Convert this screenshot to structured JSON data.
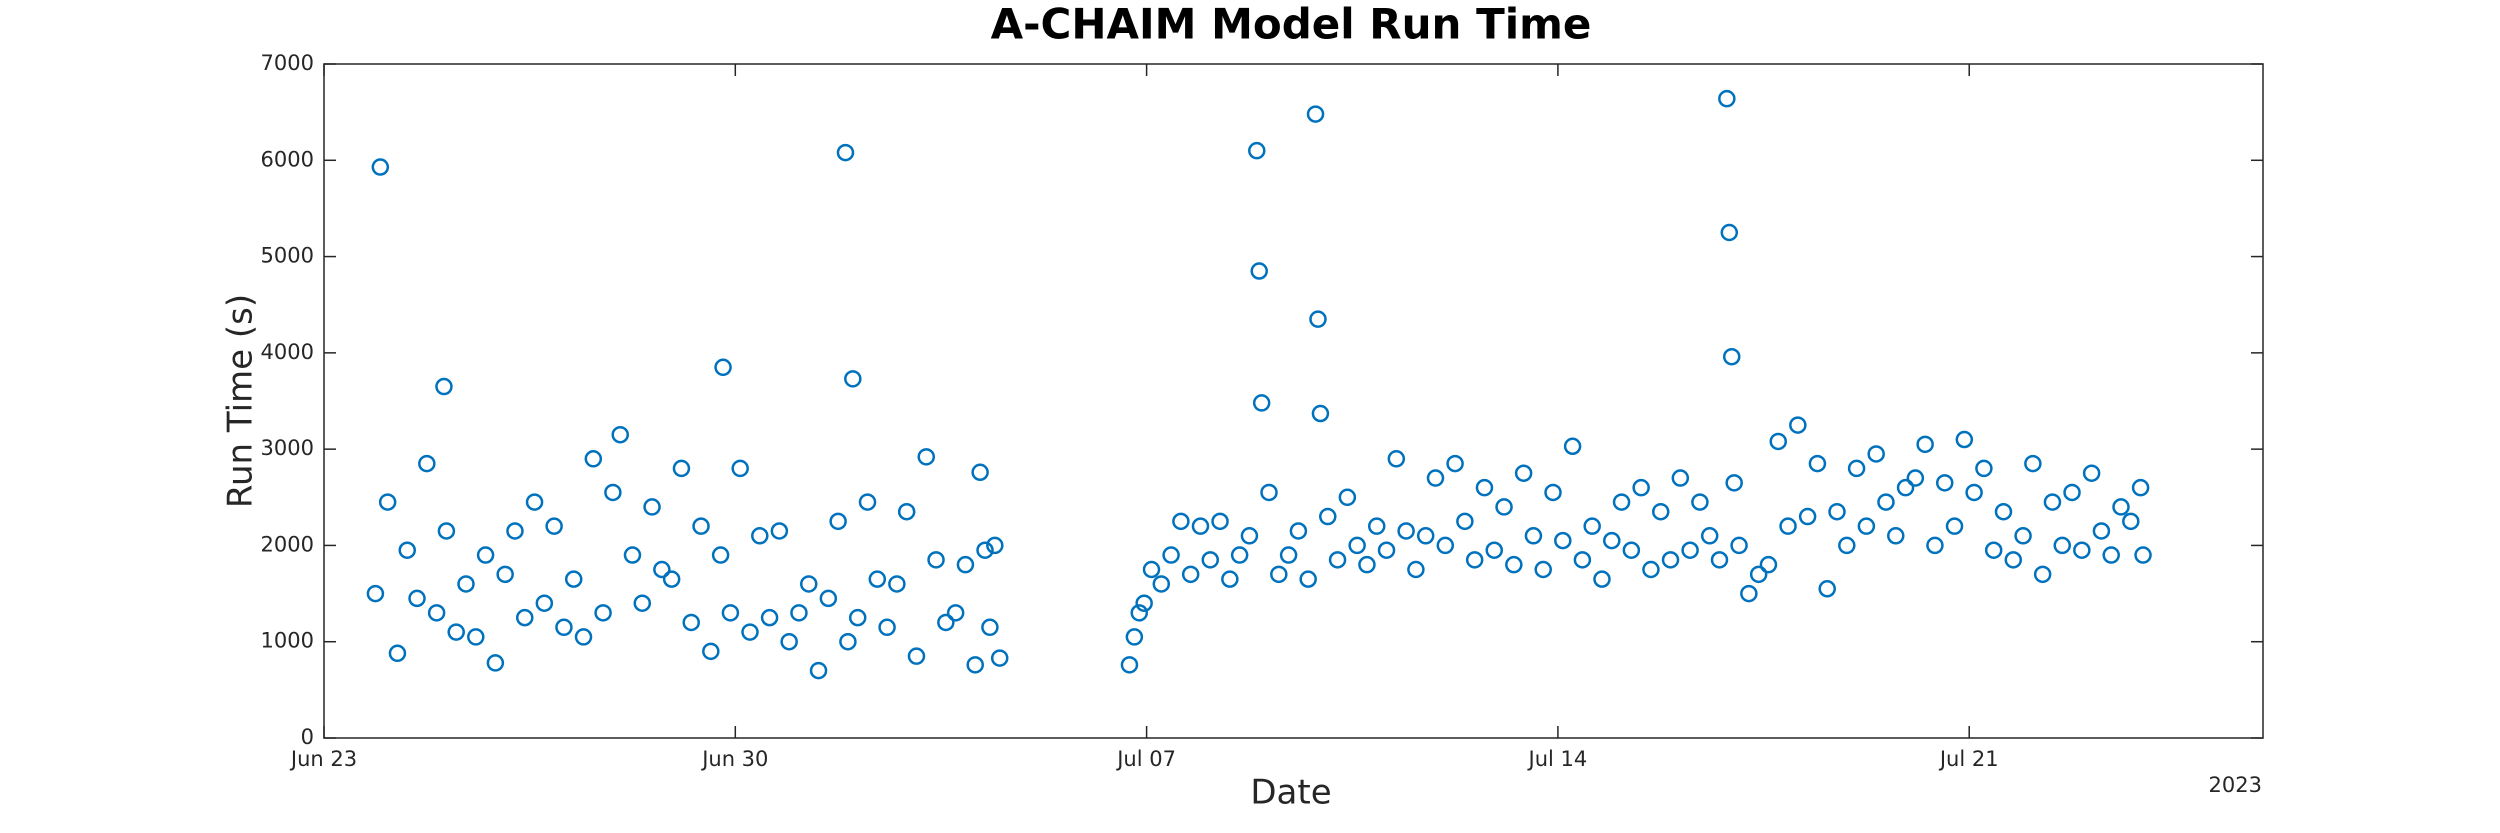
{
  "chart_data": {
    "type": "scatter",
    "title": "A-CHAIM Model Run Time",
    "xlabel": "Date",
    "ylabel": "Run Time (s)",
    "x_secondary_label": "2023",
    "xlim": [
      "2023-06-23T00:00",
      "2023-07-26T00:00"
    ],
    "xticks": [
      {
        "value": "2023-06-23T00:00",
        "label": "Jun 23"
      },
      {
        "value": "2023-06-30T00:00",
        "label": "Jun 30"
      },
      {
        "value": "2023-07-07T00:00",
        "label": "Jul 07"
      },
      {
        "value": "2023-07-14T00:00",
        "label": "Jul 14"
      },
      {
        "value": "2023-07-21T00:00",
        "label": "Jul 21"
      }
    ],
    "ylim": [
      0,
      7000
    ],
    "yticks": [
      0,
      1000,
      2000,
      3000,
      4000,
      5000,
      6000,
      7000
    ],
    "grid": false,
    "marker": "open-circle",
    "series": [
      {
        "color": "#0072bd",
        "x": [
          "2023-06-23T21:00",
          "2023-06-23T23:00",
          "2023-06-24T02:00",
          "2023-06-24T06:00",
          "2023-06-24T10:00",
          "2023-06-24T14:00",
          "2023-06-24T18:00",
          "2023-06-24T22:00",
          "2023-06-25T01:00",
          "2023-06-25T02:00",
          "2023-06-25T06:00",
          "2023-06-25T10:00",
          "2023-06-25T14:00",
          "2023-06-25T18:00",
          "2023-06-25T22:00",
          "2023-06-26T02:00",
          "2023-06-26T06:00",
          "2023-06-26T10:00",
          "2023-06-26T14:00",
          "2023-06-26T18:00",
          "2023-06-26T22:00",
          "2023-06-27T02:00",
          "2023-06-27T06:00",
          "2023-06-27T10:00",
          "2023-06-27T14:00",
          "2023-06-27T18:00",
          "2023-06-27T22:00",
          "2023-06-28T01:00",
          "2023-06-28T06:00",
          "2023-06-28T10:00",
          "2023-06-28T14:00",
          "2023-06-28T18:00",
          "2023-06-28T22:00",
          "2023-06-29T02:00",
          "2023-06-29T06:00",
          "2023-06-29T10:00",
          "2023-06-29T14:00",
          "2023-06-29T18:00",
          "2023-06-29T19:00",
          "2023-06-29T22:00",
          "2023-06-30T02:00",
          "2023-06-30T06:00",
          "2023-06-30T10:00",
          "2023-06-30T14:00",
          "2023-06-30T18:00",
          "2023-06-30T22:00",
          "2023-07-01T02:00",
          "2023-07-01T06:00",
          "2023-07-01T10:00",
          "2023-07-01T14:00",
          "2023-07-01T18:00",
          "2023-07-01T21:00",
          "2023-07-01T22:00",
          "2023-07-02T00:00",
          "2023-07-02T02:00",
          "2023-07-02T06:00",
          "2023-07-02T10:00",
          "2023-07-02T14:00",
          "2023-07-02T18:00",
          "2023-07-02T22:00",
          "2023-07-03T02:00",
          "2023-07-03T06:00",
          "2023-07-03T10:00",
          "2023-07-03T14:00",
          "2023-07-03T18:00",
          "2023-07-03T22:00",
          "2023-07-04T02:00",
          "2023-07-04T04:00",
          "2023-07-04T06:00",
          "2023-07-04T08:00",
          "2023-07-04T10:00",
          "2023-07-04T12:00",
          "2023-07-06T17:00",
          "2023-07-06T19:00",
          "2023-07-06T21:00",
          "2023-07-06T23:00",
          "2023-07-07T02:00",
          "2023-07-07T06:00",
          "2023-07-07T10:00",
          "2023-07-07T14:00",
          "2023-07-07T18:00",
          "2023-07-07T22:00",
          "2023-07-08T02:00",
          "2023-07-08T06:00",
          "2023-07-08T10:00",
          "2023-07-08T14:00",
          "2023-07-08T18:00",
          "2023-07-08T21:00",
          "2023-07-08T22:00",
          "2023-07-08T23:00",
          "2023-07-09T02:00",
          "2023-07-09T06:00",
          "2023-07-09T10:00",
          "2023-07-09T14:00",
          "2023-07-09T18:00",
          "2023-07-09T21:00",
          "2023-07-09T22:00",
          "2023-07-09T23:00",
          "2023-07-10T02:00",
          "2023-07-10T06:00",
          "2023-07-10T10:00",
          "2023-07-10T14:00",
          "2023-07-10T18:00",
          "2023-07-10T22:00",
          "2023-07-11T02:00",
          "2023-07-11T06:00",
          "2023-07-11T10:00",
          "2023-07-11T14:00",
          "2023-07-11T18:00",
          "2023-07-11T22:00",
          "2023-07-12T02:00",
          "2023-07-12T06:00",
          "2023-07-12T10:00",
          "2023-07-12T14:00",
          "2023-07-12T18:00",
          "2023-07-12T22:00",
          "2023-07-13T02:00",
          "2023-07-13T06:00",
          "2023-07-13T10:00",
          "2023-07-13T14:00",
          "2023-07-13T18:00",
          "2023-07-13T22:00",
          "2023-07-14T02:00",
          "2023-07-14T06:00",
          "2023-07-14T10:00",
          "2023-07-14T14:00",
          "2023-07-14T18:00",
          "2023-07-14T22:00",
          "2023-07-15T02:00",
          "2023-07-15T06:00",
          "2023-07-15T10:00",
          "2023-07-15T14:00",
          "2023-07-15T18:00",
          "2023-07-15T22:00",
          "2023-07-16T02:00",
          "2023-07-16T06:00",
          "2023-07-16T10:00",
          "2023-07-16T14:00",
          "2023-07-16T18:00",
          "2023-07-16T21:00",
          "2023-07-16T22:00",
          "2023-07-16T23:00",
          "2023-07-17T00:00",
          "2023-07-17T02:00",
          "2023-07-17T06:00",
          "2023-07-17T10:00",
          "2023-07-17T14:00",
          "2023-07-17T18:00",
          "2023-07-17T22:00",
          "2023-07-18T02:00",
          "2023-07-18T06:00",
          "2023-07-18T10:00",
          "2023-07-18T14:00",
          "2023-07-18T18:00",
          "2023-07-18T22:00",
          "2023-07-19T02:00",
          "2023-07-19T06:00",
          "2023-07-19T10:00",
          "2023-07-19T14:00",
          "2023-07-19T18:00",
          "2023-07-19T22:00",
          "2023-07-20T02:00",
          "2023-07-20T06:00",
          "2023-07-20T10:00",
          "2023-07-20T14:00",
          "2023-07-20T18:00",
          "2023-07-20T22:00",
          "2023-07-21T02:00",
          "2023-07-21T06:00",
          "2023-07-21T10:00",
          "2023-07-21T14:00",
          "2023-07-21T18:00",
          "2023-07-21T22:00",
          "2023-07-22T02:00",
          "2023-07-22T06:00",
          "2023-07-22T10:00",
          "2023-07-22T14:00",
          "2023-07-22T18:00",
          "2023-07-22T22:00",
          "2023-07-23T02:00",
          "2023-07-23T06:00",
          "2023-07-23T10:00",
          "2023-07-23T14:00",
          "2023-07-23T18:00",
          "2023-07-23T22:00",
          "2023-07-23T23:00"
        ],
        "values": [
          1500,
          5930,
          2450,
          880,
          1950,
          1450,
          2850,
          1300,
          3650,
          2150,
          1100,
          1600,
          1050,
          1900,
          780,
          1700,
          2150,
          1250,
          2450,
          1400,
          2200,
          1150,
          1650,
          1050,
          2900,
          1300,
          2550,
          3150,
          1900,
          1400,
          2400,
          1750,
          1650,
          2800,
          1200,
          2200,
          900,
          1900,
          3850,
          1300,
          2800,
          1100,
          2100,
          1250,
          2150,
          1000,
          1300,
          1600,
          700,
          1450,
          2250,
          6080,
          1000,
          3730,
          1250,
          2450,
          1650,
          1150,
          1600,
          2350,
          850,
          2920,
          1850,
          1200,
          1300,
          1800,
          760,
          2760,
          1950,
          1150,
          2000,
          830,
          760,
          1050,
          1300,
          1400,
          1750,
          1600,
          1900,
          2250,
          1700,
          2200,
          1850,
          2250,
          1650,
          1900,
          2100,
          6100,
          4850,
          3480,
          2550,
          1700,
          1900,
          2150,
          1650,
          6480,
          4350,
          3370,
          2300,
          1850,
          2500,
          2000,
          1800,
          2200,
          1950,
          2900,
          2150,
          1750,
          2100,
          2700,
          2000,
          2850,
          2250,
          1850,
          2600,
          1950,
          2400,
          1800,
          2750,
          2100,
          1750,
          2550,
          2050,
          3030,
          1850,
          2200,
          1650,
          2050,
          2450,
          1950,
          2600,
          1750,
          2350,
          1850,
          2700,
          1950,
          2450,
          2100,
          1850,
          6640,
          5250,
          3960,
          2650,
          2000,
          1500,
          1700,
          1800,
          3080,
          2200,
          3250,
          2300,
          2850,
          1550,
          2350,
          2000,
          2800,
          2200,
          2950,
          2450,
          2100,
          2600,
          2700,
          3050,
          2000,
          2650,
          2200,
          3100,
          2550,
          2800,
          1950,
          2350,
          1850,
          2100,
          2850,
          1700,
          2450,
          2000,
          2550,
          1950,
          2750,
          2150,
          1900,
          2400,
          2250,
          2600,
          1900
        ]
      }
    ]
  }
}
